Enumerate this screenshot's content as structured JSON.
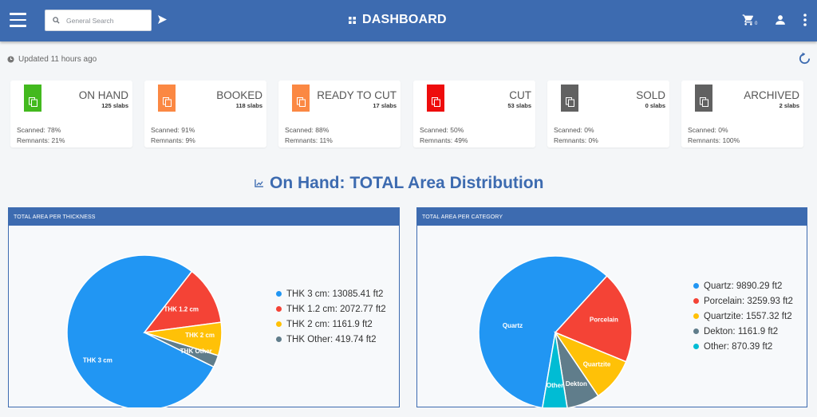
{
  "header": {
    "title": "DASHBOARD",
    "search_placeholder": "General Search",
    "cart_count": "0"
  },
  "status": {
    "updated_text": "Updated 11 hours ago"
  },
  "cards": [
    {
      "title": "ON HAND",
      "count": "125 slabs",
      "scanned": "Scanned: 78%",
      "remnants": "Remnants: 21%",
      "color": "#43b91e"
    },
    {
      "title": "BOOKED",
      "count": "118 slabs",
      "scanned": "Scanned: 91%",
      "remnants": "Remnants: 9%",
      "color": "#fb8843"
    },
    {
      "title": "READY TO CUT",
      "count": "17 slabs",
      "scanned": "Scanned: 88%",
      "remnants": "Remnants: 11%",
      "color": "#fb8843"
    },
    {
      "title": "CUT",
      "count": "53 slabs",
      "scanned": "Scanned: 50%",
      "remnants": "Remnants: 49%",
      "color": "#ee0c0c"
    },
    {
      "title": "SOLD",
      "count": "0 slabs",
      "scanned": "Scanned: 0%",
      "remnants": "Remnants: 0%",
      "color": "#616161"
    },
    {
      "title": "ARCHIVED",
      "count": "2 slabs",
      "scanned": "Scanned: 0%",
      "remnants": "Remnants: 100%",
      "color": "#616161"
    }
  ],
  "section": {
    "title": "On Hand: TOTAL Area Distribution"
  },
  "chart_data": [
    {
      "type": "pie",
      "title": "TOTAL AREA PER THICKNESS",
      "slices": [
        {
          "label": "THK 3 cm",
          "legend": "THK 3 cm: 13085.41 ft2",
          "value": 13085.41,
          "color": "#2196f3"
        },
        {
          "label": "THK 1.2 cm",
          "legend": "THK 1.2 cm: 2072.77 ft2",
          "value": 2072.77,
          "color": "#f44336"
        },
        {
          "label": "THK 2 cm",
          "legend": "THK 2 cm: 1161.9 ft2",
          "value": 1161.9,
          "color": "#ffc107"
        },
        {
          "label": "THK Other",
          "legend": "THK Other: 419.74 ft2",
          "value": 419.74,
          "color": "#607d8b"
        }
      ],
      "legend_position": "right"
    },
    {
      "type": "pie",
      "title": "TOTAL AREA PER CATEGORY",
      "slices": [
        {
          "label": "Quartz",
          "legend": "Quartz: 9890.29 ft2",
          "value": 9890.29,
          "color": "#2196f3"
        },
        {
          "label": "Porcelain",
          "legend": "Porcelain: 3259.93 ft2",
          "value": 3259.93,
          "color": "#f44336"
        },
        {
          "label": "Quartzite",
          "legend": "Quartzite: 1557.32 ft2",
          "value": 1557.32,
          "color": "#ffc107"
        },
        {
          "label": "Dekton",
          "legend": "Dekton: 1161.9 ft2",
          "value": 1161.9,
          "color": "#607d8b"
        },
        {
          "label": "Other",
          "legend": "Other: 870.39 ft2",
          "value": 870.39,
          "color": "#00bcd4"
        }
      ],
      "legend_position": "right"
    }
  ],
  "icons": {
    "menu": "hamburger-icon",
    "search": "search-icon",
    "send": "send-icon",
    "dashboard": "grid-icon",
    "cart": "cart-icon",
    "user": "user-icon",
    "more": "more-vertical-icon",
    "clock": "clock-icon",
    "refresh": "refresh-icon",
    "card": "copy-icon",
    "section": "chart-icon"
  }
}
